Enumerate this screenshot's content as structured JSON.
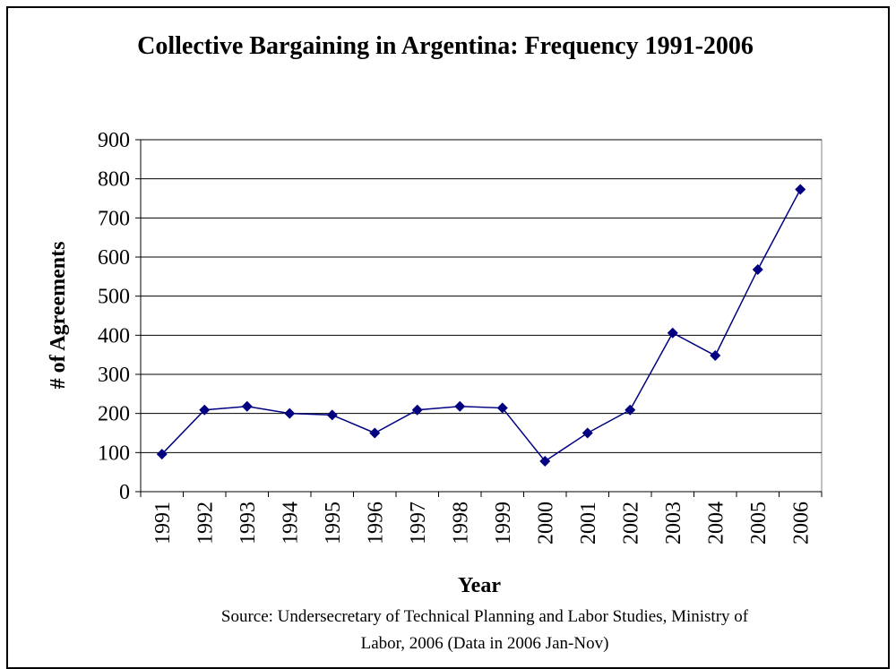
{
  "chart_data": {
    "type": "line",
    "title": "Collective Bargaining in Argentina: Frequency 1991-2006",
    "xlabel": "Year",
    "ylabel": "# of Agreements",
    "categories": [
      "1991",
      "1992",
      "1993",
      "1994",
      "1995",
      "1996",
      "1997",
      "1998",
      "1999",
      "2000",
      "2001",
      "2002",
      "2003",
      "2004",
      "2005",
      "2006"
    ],
    "series": [
      {
        "values": [
          96,
          209,
          218,
          200,
          196,
          150,
          209,
          218,
          214,
          78,
          150,
          209,
          406,
          348,
          568,
          773
        ]
      }
    ],
    "ylim": [
      0,
      900
    ],
    "yticks": [
      "0",
      "100",
      "200",
      "300",
      "400",
      "500",
      "600",
      "700",
      "800",
      "900"
    ],
    "grid": true,
    "legend": "none",
    "colors": {
      "series": "#000080",
      "grid": "#000000",
      "plot_border": "#808080"
    }
  },
  "source": {
    "line1": "Source: Undersecretary of Technical Planning and Labor Studies, Ministry of",
    "line2": "Labor, 2006 (Data in 2006 Jan-Nov)"
  }
}
